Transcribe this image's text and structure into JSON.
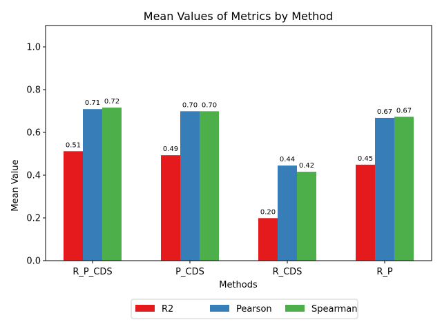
{
  "chart_data": {
    "type": "bar",
    "title": "Mean Values of Metrics by Method",
    "xlabel": "Methods",
    "ylabel": "Mean Value",
    "ylim": [
      0,
      1.1
    ],
    "yticks": [
      "0.0",
      "0.2",
      "0.4",
      "0.6",
      "0.8",
      "1.0"
    ],
    "categories": [
      "R_P_CDS",
      "P_CDS",
      "R_CDS",
      "R_P"
    ],
    "series": [
      {
        "name": "R2",
        "color": "#e41a1c",
        "values": [
          0.512,
          0.493,
          0.199,
          0.449
        ],
        "labels": [
          "0.51",
          "0.49",
          "0.20",
          "0.45"
        ]
      },
      {
        "name": "Pearson",
        "color": "#377eb8",
        "values": [
          0.709,
          0.699,
          0.445,
          0.668
        ],
        "labels": [
          "0.71",
          "0.70",
          "0.44",
          "0.67"
        ]
      },
      {
        "name": "Spearman",
        "color": "#4daf4a",
        "values": [
          0.716,
          0.699,
          0.416,
          0.673
        ],
        "labels": [
          "0.72",
          "0.70",
          "0.42",
          "0.67"
        ]
      }
    ],
    "grid": false,
    "legend_position": "bottom-center, below plot"
  }
}
